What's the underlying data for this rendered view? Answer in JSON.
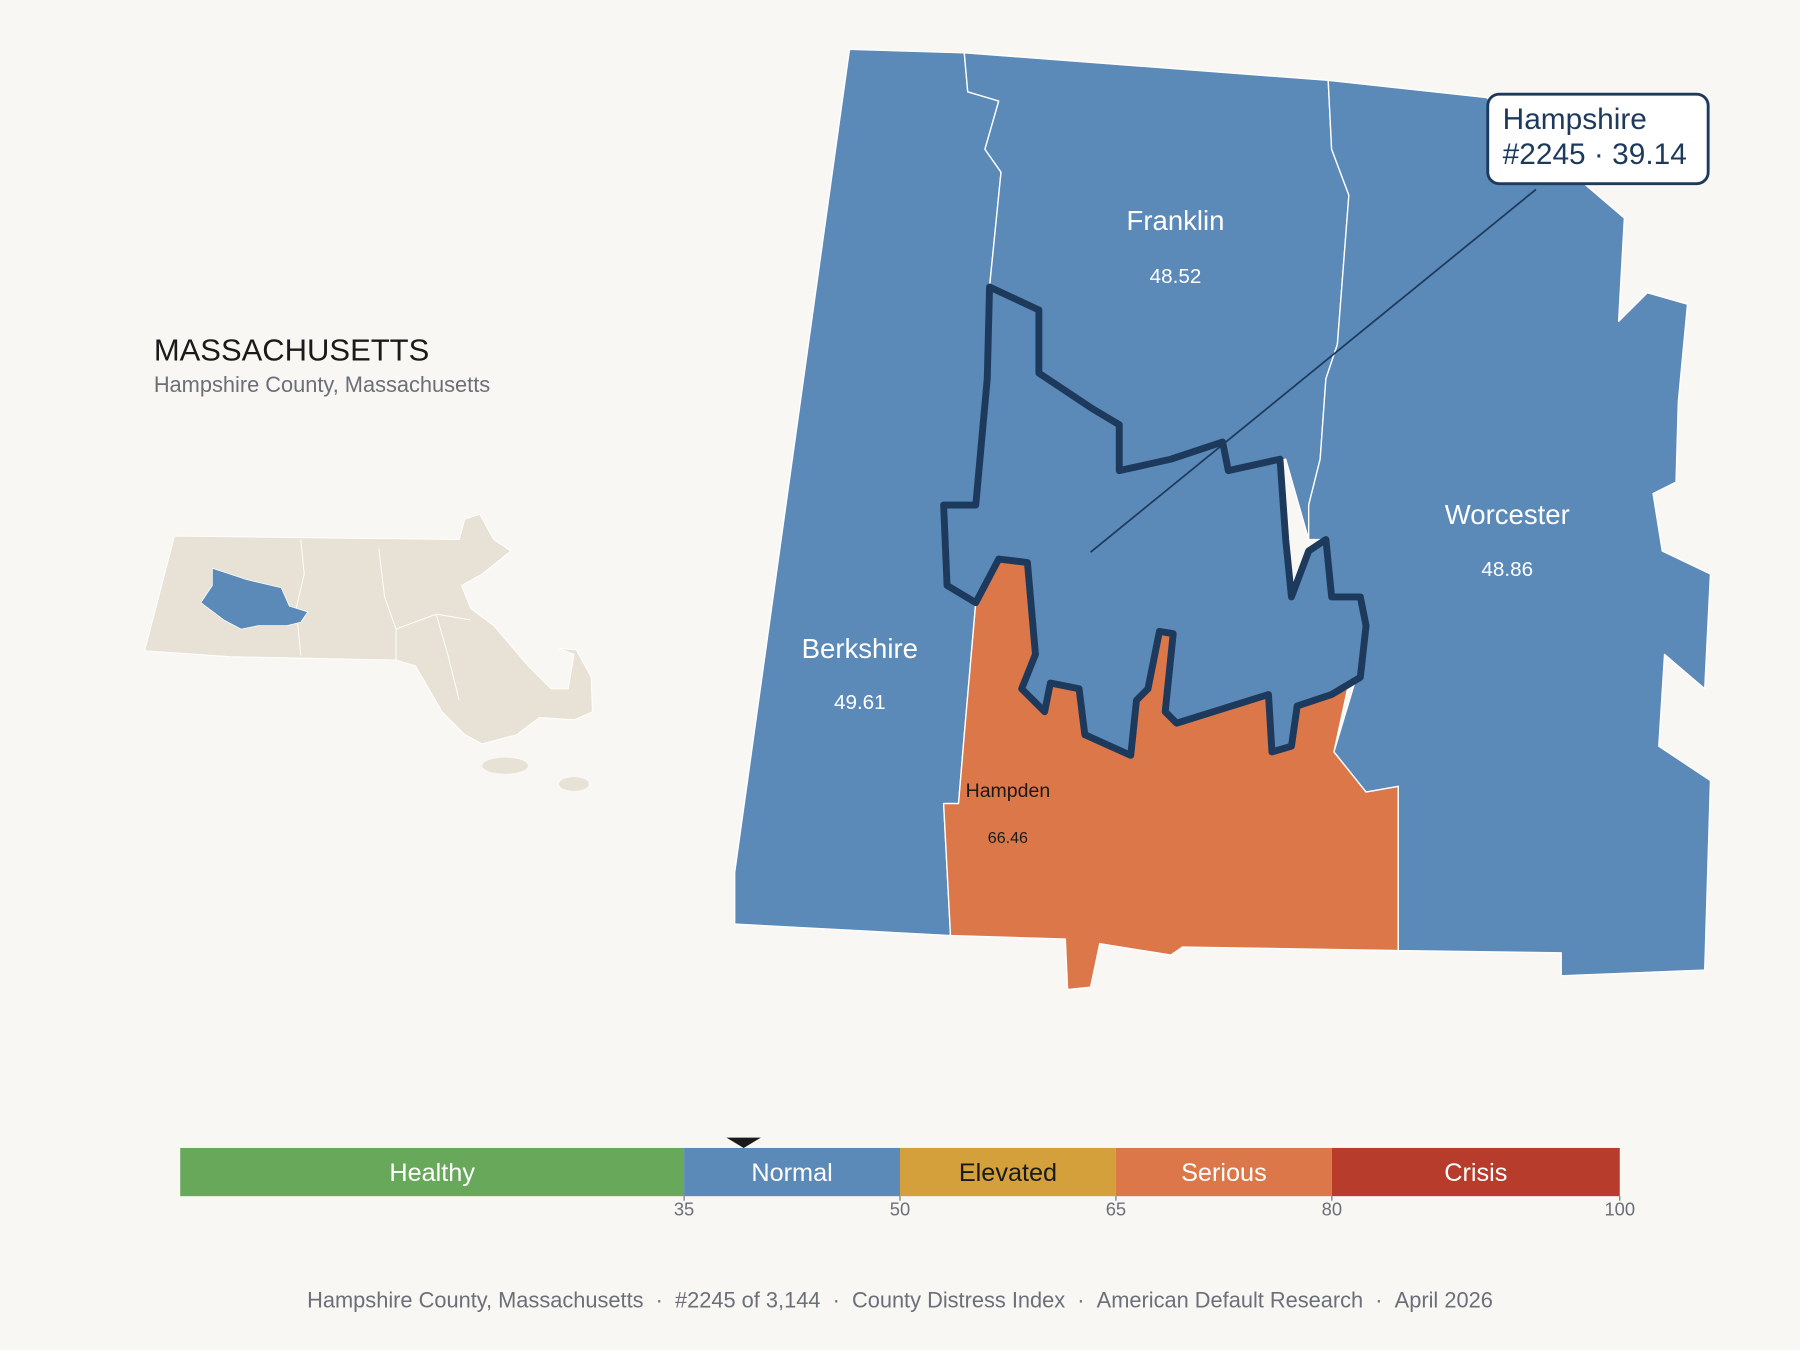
{
  "header": {
    "title": "MASSACHUSETTS",
    "subtitle": "Hampshire County, Massachusetts"
  },
  "counties": [
    {
      "name": "Franklin",
      "value": 48.52
    },
    {
      "name": "Worcester",
      "value": 48.86
    },
    {
      "name": "Berkshire",
      "value": 49.61
    },
    {
      "name": "Hampden",
      "value": 66.46
    }
  ],
  "callout": {
    "name": "Hampshire",
    "rank": "#2245",
    "score": 39.14,
    "separator": "·"
  },
  "scale": {
    "range": [
      0,
      100
    ],
    "ticks": [
      35,
      50,
      65,
      80,
      100
    ],
    "bands": [
      {
        "label": "Healthy",
        "color": "#68a85a"
      },
      {
        "label": "Normal",
        "color": "#5b89b8"
      },
      {
        "label": "Elevated",
        "color": "#d4a03c"
      },
      {
        "label": "Serious",
        "color": "#dc774a"
      },
      {
        "label": "Crisis",
        "color": "#b83c2c"
      }
    ]
  },
  "footer": {
    "items": [
      "Hampshire County, Massachusetts",
      "#2245 of 3,144",
      "County Distress Index",
      "American Default Research",
      "April 2026"
    ],
    "separator": "·"
  }
}
